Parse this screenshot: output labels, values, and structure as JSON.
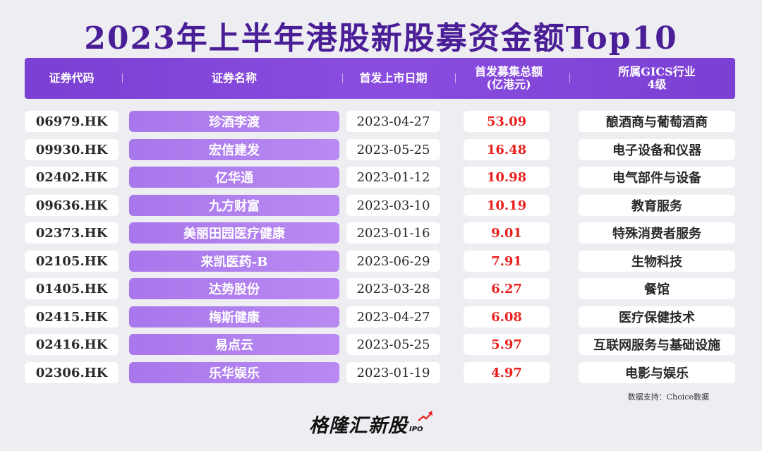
{
  "title": "2023年上半年港股新股募资金额Top10",
  "headers": {
    "code": "证券代码",
    "name": "证券名称",
    "date": "首发上市日期",
    "amount": "首发募集总额\n(亿港元)",
    "industry": "所属GICS行业\n4级"
  },
  "rows": [
    {
      "code": "06979.HK",
      "name": "珍酒李渡",
      "date": "2023-04-27",
      "amount": "53.09",
      "industry": "酿酒商与葡萄酒商"
    },
    {
      "code": "09930.HK",
      "name": "宏信建发",
      "date": "2023-05-25",
      "amount": "16.48",
      "industry": "电子设备和仪器"
    },
    {
      "code": "02402.HK",
      "name": "亿华通",
      "date": "2023-01-12",
      "amount": "10.98",
      "industry": "电气部件与设备"
    },
    {
      "code": "09636.HK",
      "name": "九方财富",
      "date": "2023-03-10",
      "amount": "10.19",
      "industry": "教育服务"
    },
    {
      "code": "02373.HK",
      "name": "美丽田园医疗健康",
      "date": "2023-01-16",
      "amount": "9.01",
      "industry": "特殊消费者服务"
    },
    {
      "code": "02105.HK",
      "name": "来凯医药-B",
      "date": "2023-06-29",
      "amount": "7.91",
      "industry": "生物科技"
    },
    {
      "code": "01405.HK",
      "name": "达势股份",
      "date": "2023-03-28",
      "amount": "6.27",
      "industry": "餐馆"
    },
    {
      "code": "02415.HK",
      "name": "梅斯健康",
      "date": "2023-04-27",
      "amount": "6.08",
      "industry": "医疗保健技术"
    },
    {
      "code": "02416.HK",
      "name": "易点云",
      "date": "2023-05-25",
      "amount": "5.97",
      "industry": "互联网服务与基础设施"
    },
    {
      "code": "02306.HK",
      "name": "乐华娱乐",
      "date": "2023-01-19",
      "amount": "4.97",
      "industry": "电影与娱乐"
    }
  ],
  "source": "数据支持：Choice数据",
  "logo": {
    "text": "格隆汇新股",
    "sub": "IPO"
  },
  "colors": {
    "title": "#4a1e96",
    "header_bg": "#7b3fd3",
    "name_cell_bg": "#b07ff0",
    "amount_text": "#e8211f",
    "page_bg": "#eeedf2"
  },
  "chart_data": {
    "type": "table",
    "title": "2023年上半年港股新股募资金额Top10",
    "columns": [
      "证券代码",
      "证券名称",
      "首发上市日期",
      "首发募集总额(亿港元)",
      "所属GICS行业4级"
    ],
    "values": [
      53.09,
      16.48,
      10.98,
      10.19,
      9.01,
      7.91,
      6.27,
      6.08,
      5.97,
      4.97
    ]
  }
}
